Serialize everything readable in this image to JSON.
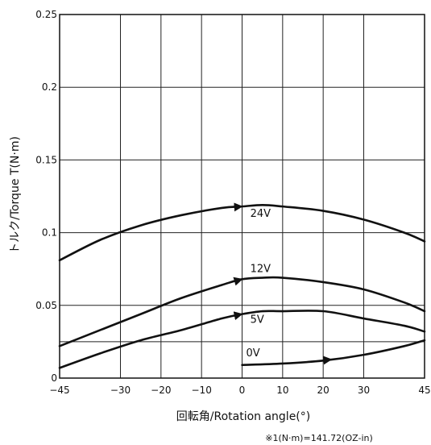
{
  "chart_data": {
    "type": "line",
    "xlabel": "回転角/Rotation angle(°)",
    "ylabel": "トルク/Torque T(N·m)",
    "footnote": "※1(N·m)=141.72(OZ-in)",
    "xlim": [
      -45,
      45
    ],
    "ylim": [
      0,
      0.25
    ],
    "x_ticks": [
      -45,
      -30,
      -20,
      -10,
      0,
      10,
      20,
      30,
      45
    ],
    "x_tick_labels": [
      "−45",
      "−30",
      "−20",
      "−10",
      "0",
      "10",
      "20",
      "30",
      "45"
    ],
    "y_ticks": [
      0,
      0.05,
      0.1,
      0.15,
      0.2,
      0.25
    ],
    "y_tick_labels": [
      "0",
      "0.05",
      "0.1",
      "0.15",
      "0.2",
      "0.25"
    ],
    "extra_grid_y": [
      0.025
    ],
    "grid": true,
    "series": [
      {
        "name": "24V",
        "x": [
          -45,
          -35,
          -25,
          -15,
          -5,
          0,
          5,
          10,
          20,
          30,
          40,
          45
        ],
        "y": [
          0.081,
          0.095,
          0.105,
          0.112,
          0.117,
          0.118,
          0.119,
          0.118,
          0.115,
          0.109,
          0.1,
          0.094
        ]
      },
      {
        "name": "12V",
        "x": [
          -45,
          -35,
          -25,
          -15,
          -5,
          0,
          5,
          10,
          20,
          30,
          40,
          45
        ],
        "y": [
          0.022,
          0.033,
          0.044,
          0.055,
          0.064,
          0.068,
          0.069,
          0.069,
          0.066,
          0.061,
          0.052,
          0.046
        ]
      },
      {
        "name": "5V",
        "x": [
          -45,
          -35,
          -25,
          -15,
          -5,
          0,
          5,
          10,
          20,
          30,
          40,
          45
        ],
        "y": [
          0.007,
          0.017,
          0.026,
          0.033,
          0.041,
          0.044,
          0.046,
          0.046,
          0.046,
          0.041,
          0.036,
          0.032
        ]
      },
      {
        "name": "0V",
        "x": [
          0,
          10,
          20,
          30,
          40,
          45
        ],
        "y": [
          0.009,
          0.01,
          0.012,
          0.016,
          0.022,
          0.026
        ]
      }
    ]
  }
}
